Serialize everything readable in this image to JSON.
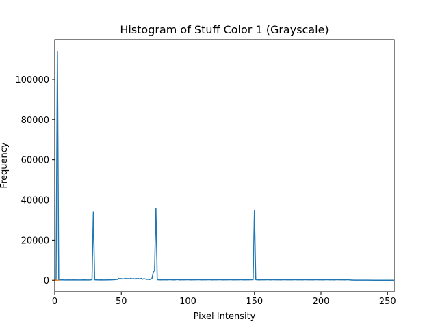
{
  "chart_data": {
    "type": "line",
    "title": "Histogram of Stuff Color 1 (Grayscale)",
    "xlabel": "Pixel Intensity",
    "ylabel": "Frequency",
    "xlim": [
      0,
      255
    ],
    "ylim": [
      -5700,
      119700
    ],
    "xticks": [
      0,
      50,
      100,
      150,
      200,
      250
    ],
    "yticks": [
      0,
      20000,
      40000,
      60000,
      80000,
      100000
    ],
    "grid": false,
    "series": [
      {
        "color": "#1f77b4",
        "points": [
          [
            0,
            300
          ],
          [
            1,
            300
          ],
          [
            2,
            114000
          ],
          [
            3,
            200
          ],
          [
            4,
            100
          ],
          [
            5,
            200
          ],
          [
            6,
            150
          ],
          [
            7,
            100
          ],
          [
            8,
            100
          ],
          [
            9,
            100
          ],
          [
            10,
            150
          ],
          [
            12,
            100
          ],
          [
            14,
            150
          ],
          [
            16,
            100
          ],
          [
            18,
            120
          ],
          [
            20,
            100
          ],
          [
            22,
            150
          ],
          [
            24,
            100
          ],
          [
            26,
            100
          ],
          [
            27,
            200
          ],
          [
            28,
            200
          ],
          [
            29,
            34000
          ],
          [
            30,
            200
          ],
          [
            31,
            200
          ],
          [
            33,
            100
          ],
          [
            35,
            150
          ],
          [
            37,
            100
          ],
          [
            40,
            150
          ],
          [
            43,
            200
          ],
          [
            45,
            300
          ],
          [
            47,
            400
          ],
          [
            48,
            900
          ],
          [
            49,
            700
          ],
          [
            50,
            800
          ],
          [
            51,
            600
          ],
          [
            52,
            700
          ],
          [
            53,
            900
          ],
          [
            54,
            700
          ],
          [
            55,
            800
          ],
          [
            56,
            600
          ],
          [
            57,
            900
          ],
          [
            58,
            700
          ],
          [
            59,
            800
          ],
          [
            60,
            600
          ],
          [
            61,
            900
          ],
          [
            62,
            700
          ],
          [
            63,
            800
          ],
          [
            64,
            600
          ],
          [
            65,
            900
          ],
          [
            66,
            500
          ],
          [
            67,
            800
          ],
          [
            68,
            600
          ],
          [
            69,
            400
          ],
          [
            70,
            500
          ],
          [
            71,
            300
          ],
          [
            72,
            500
          ],
          [
            73,
            800
          ],
          [
            74,
            4000
          ],
          [
            75,
            5000
          ],
          [
            76,
            35800
          ],
          [
            77,
            300
          ],
          [
            78,
            200
          ],
          [
            80,
            150
          ],
          [
            82,
            250
          ],
          [
            84,
            150
          ],
          [
            86,
            300
          ],
          [
            88,
            200
          ],
          [
            90,
            150
          ],
          [
            92,
            350
          ],
          [
            94,
            150
          ],
          [
            96,
            250
          ],
          [
            98,
            200
          ],
          [
            100,
            300
          ],
          [
            102,
            150
          ],
          [
            104,
            250
          ],
          [
            106,
            200
          ],
          [
            108,
            300
          ],
          [
            110,
            150
          ],
          [
            112,
            250
          ],
          [
            114,
            200
          ],
          [
            116,
            300
          ],
          [
            118,
            150
          ],
          [
            120,
            250
          ],
          [
            122,
            200
          ],
          [
            124,
            300
          ],
          [
            126,
            150
          ],
          [
            128,
            250
          ],
          [
            130,
            200
          ],
          [
            132,
            300
          ],
          [
            134,
            150
          ],
          [
            136,
            250
          ],
          [
            138,
            200
          ],
          [
            140,
            300
          ],
          [
            142,
            150
          ],
          [
            144,
            250
          ],
          [
            146,
            200
          ],
          [
            148,
            300
          ],
          [
            149,
            200
          ],
          [
            150,
            34500
          ],
          [
            151,
            300
          ],
          [
            152,
            200
          ],
          [
            154,
            150
          ],
          [
            156,
            250
          ],
          [
            158,
            200
          ],
          [
            160,
            300
          ],
          [
            162,
            150
          ],
          [
            164,
            300
          ],
          [
            166,
            200
          ],
          [
            168,
            250
          ],
          [
            170,
            150
          ],
          [
            172,
            300
          ],
          [
            174,
            200
          ],
          [
            176,
            250
          ],
          [
            178,
            150
          ],
          [
            180,
            300
          ],
          [
            182,
            200
          ],
          [
            184,
            250
          ],
          [
            186,
            150
          ],
          [
            188,
            300
          ],
          [
            190,
            200
          ],
          [
            192,
            250
          ],
          [
            194,
            150
          ],
          [
            196,
            300
          ],
          [
            198,
            200
          ],
          [
            200,
            250
          ],
          [
            202,
            150
          ],
          [
            204,
            300
          ],
          [
            206,
            200
          ],
          [
            208,
            250
          ],
          [
            210,
            150
          ],
          [
            212,
            300
          ],
          [
            214,
            200
          ],
          [
            216,
            250
          ],
          [
            218,
            150
          ],
          [
            220,
            300
          ],
          [
            222,
            100
          ],
          [
            225,
            50
          ],
          [
            230,
            30
          ],
          [
            235,
            20
          ],
          [
            240,
            10
          ],
          [
            245,
            10
          ],
          [
            250,
            5
          ],
          [
            255,
            5
          ]
        ]
      },
      {
        "color": "#ff7f0e",
        "points": [
          [
            0,
            0
          ],
          [
            1,
            0
          ],
          [
            2,
            0
          ],
          [
            3,
            0
          ]
        ]
      }
    ]
  }
}
